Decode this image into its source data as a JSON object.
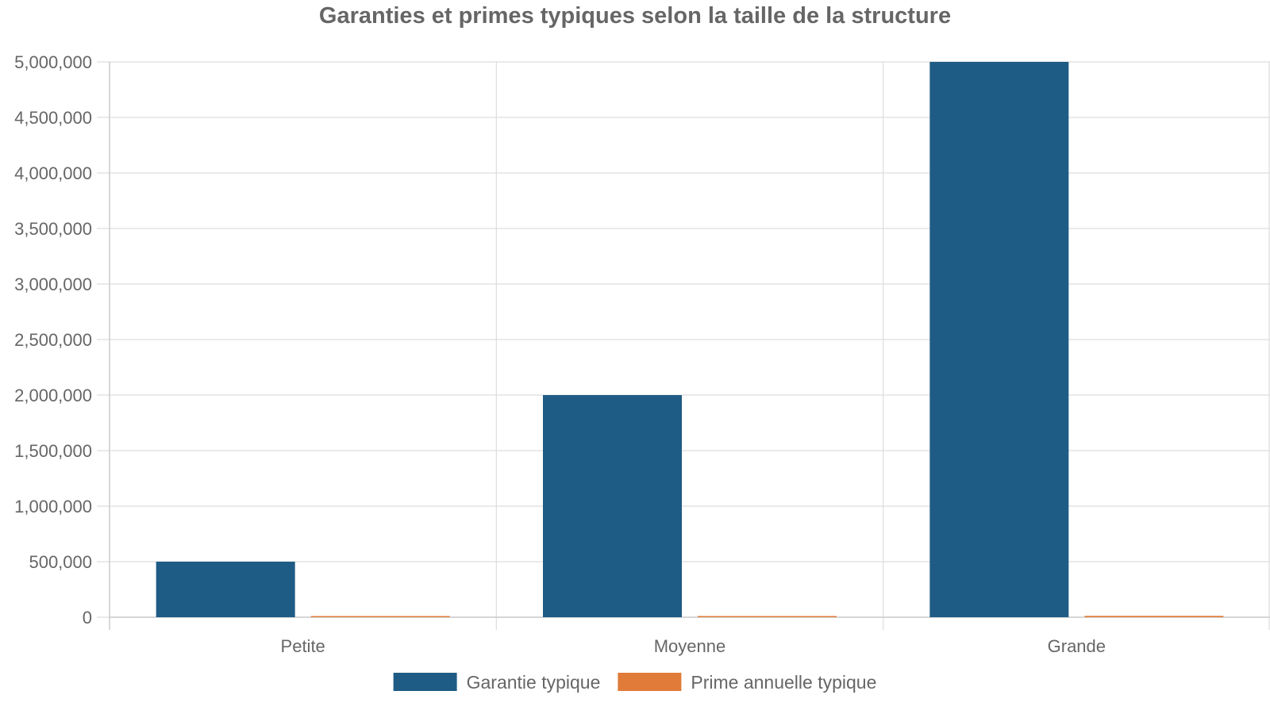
{
  "chart_data": {
    "type": "bar",
    "title": "Garanties et primes typiques selon la taille de la structure",
    "xlabel": "",
    "ylabel": "",
    "categories": [
      "Petite",
      "Moyenne",
      "Grande"
    ],
    "series": [
      {
        "name": "Garantie typique",
        "color": "#1f5c85",
        "values": [
          500000,
          2000000,
          5000000
        ]
      },
      {
        "name": "Prime annuelle typique",
        "color": "#e07b39",
        "values": [
          1500,
          4000,
          12000
        ]
      }
    ],
    "ylim": [
      0,
      5000000
    ],
    "yticks": [
      0,
      500000,
      1000000,
      1500000,
      2000000,
      2500000,
      3000000,
      3500000,
      4000000,
      4500000,
      5000000
    ],
    "ytick_labels": [
      "0",
      "500,000",
      "1,000,000",
      "1,500,000",
      "2,000,000",
      "2,500,000",
      "3,000,000",
      "3,500,000",
      "4,000,000",
      "4,500,000",
      "5,000,000"
    ],
    "grid": true,
    "legend_position": "bottom"
  }
}
